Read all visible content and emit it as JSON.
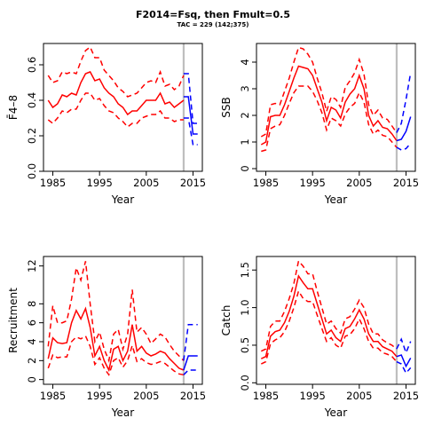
{
  "figure": {
    "title": "F2014=Fsq, then Fmult=0.5",
    "subtitle": "TAC = 229 (142;375)",
    "colors": {
      "hist": "#ff0000",
      "proj": "#0000ff",
      "vline": "#bebebe"
    },
    "vline_year": 2013
  },
  "chart_data": [
    {
      "id": "fbar",
      "type": "line",
      "ylabel": "F̄4–8",
      "xlabel": "Year",
      "xlim": [
        1983,
        2017
      ],
      "ylim": [
        0,
        0.72
      ],
      "yticks": [
        "0.0",
        "0.2",
        "0.4",
        "0.6"
      ],
      "yticks_values": [
        0,
        0.2,
        0.4,
        0.6
      ],
      "xticks": [
        "1985",
        "1995",
        "2005",
        "2015"
      ],
      "xticks_values": [
        1985,
        1995,
        2005,
        2015
      ],
      "x": [
        1984,
        1985,
        1986,
        1987,
        1988,
        1989,
        1990,
        1991,
        1992,
        1993,
        1994,
        1995,
        1996,
        1997,
        1998,
        1999,
        2000,
        2001,
        2002,
        2003,
        2004,
        2005,
        2006,
        2007,
        2008,
        2009,
        2010,
        2011,
        2012,
        2013
      ],
      "series": [
        {
          "role": "median",
          "style": "solid",
          "values": [
            0.4,
            0.36,
            0.38,
            0.43,
            0.42,
            0.44,
            0.43,
            0.5,
            0.55,
            0.56,
            0.51,
            0.52,
            0.47,
            0.44,
            0.42,
            0.38,
            0.36,
            0.32,
            0.34,
            0.34,
            0.37,
            0.4,
            0.4,
            0.4,
            0.44,
            0.38,
            0.39,
            0.36,
            0.38,
            0.4
          ]
        },
        {
          "role": "upper",
          "style": "dashed",
          "values": [
            0.54,
            0.5,
            0.51,
            0.56,
            0.55,
            0.56,
            0.55,
            0.62,
            0.68,
            0.7,
            0.64,
            0.64,
            0.57,
            0.54,
            0.51,
            0.47,
            0.45,
            0.42,
            0.43,
            0.44,
            0.47,
            0.5,
            0.51,
            0.5,
            0.56,
            0.48,
            0.49,
            0.46,
            0.48,
            0.54
          ]
        },
        {
          "role": "lower",
          "style": "dashed",
          "values": [
            0.29,
            0.27,
            0.3,
            0.34,
            0.33,
            0.35,
            0.35,
            0.4,
            0.44,
            0.44,
            0.4,
            0.41,
            0.37,
            0.34,
            0.33,
            0.3,
            0.28,
            0.25,
            0.27,
            0.27,
            0.3,
            0.31,
            0.32,
            0.32,
            0.34,
            0.3,
            0.3,
            0.28,
            0.29,
            0.29
          ]
        }
      ],
      "projection": {
        "x": [
          2013,
          2014,
          2015,
          2016
        ],
        "median": [
          0.42,
          0.42,
          0.21,
          0.21
        ],
        "upper": [
          0.55,
          0.55,
          0.27,
          0.27
        ],
        "lower": [
          0.3,
          0.3,
          0.15,
          0.15
        ]
      }
    },
    {
      "id": "ssb",
      "type": "line",
      "ylabel": "SSB",
      "xlabel": "Year",
      "xlim": [
        1983,
        2017
      ],
      "ylim": [
        -0.1,
        4.7
      ],
      "yticks": [
        "0",
        "1",
        "2",
        "3",
        "4"
      ],
      "yticks_values": [
        0,
        1,
        2,
        3,
        4
      ],
      "xticks": [
        "1985",
        "1995",
        "2005",
        "2015"
      ],
      "xticks_values": [
        1985,
        1995,
        2005,
        2015
      ],
      "x": [
        1984,
        1985,
        1986,
        1987,
        1988,
        1989,
        1990,
        1991,
        1992,
        1993,
        1994,
        1995,
        1996,
        1997,
        1998,
        1999,
        2000,
        2001,
        2002,
        2003,
        2004,
        2005,
        2006,
        2007,
        2008,
        2009,
        2010,
        2011,
        2012,
        2013
      ],
      "series": [
        {
          "role": "median",
          "style": "solid",
          "values": [
            0.9,
            1.0,
            1.95,
            2.0,
            2.0,
            2.4,
            2.9,
            3.4,
            3.85,
            3.8,
            3.75,
            3.5,
            3.0,
            2.5,
            1.8,
            2.3,
            2.2,
            1.9,
            2.5,
            2.8,
            3.0,
            3.5,
            3.0,
            2.0,
            1.6,
            1.8,
            1.55,
            1.5,
            1.3,
            1.05
          ]
        },
        {
          "role": "upper",
          "style": "dashed",
          "values": [
            1.2,
            1.3,
            2.4,
            2.45,
            2.4,
            2.9,
            3.4,
            4.0,
            4.55,
            4.5,
            4.3,
            4.0,
            3.4,
            2.85,
            2.15,
            2.7,
            2.6,
            2.3,
            3.05,
            3.3,
            3.6,
            4.1,
            3.55,
            2.4,
            2.0,
            2.2,
            1.9,
            1.85,
            1.6,
            1.35
          ]
        },
        {
          "role": "lower",
          "style": "dashed",
          "values": [
            0.65,
            0.7,
            1.5,
            1.6,
            1.65,
            2.0,
            2.45,
            2.85,
            3.1,
            3.1,
            3.1,
            2.9,
            2.55,
            2.1,
            1.45,
            1.9,
            1.8,
            1.6,
            2.05,
            2.3,
            2.45,
            2.85,
            2.5,
            1.65,
            1.3,
            1.45,
            1.25,
            1.2,
            1.0,
            0.8
          ]
        }
      ],
      "projection": {
        "x": [
          2013,
          2014,
          2015,
          2016
        ],
        "median": [
          1.05,
          1.1,
          1.4,
          1.95
        ],
        "upper": [
          1.35,
          1.7,
          2.6,
          3.6
        ],
        "lower": [
          0.8,
          0.7,
          0.75,
          0.95
        ]
      }
    },
    {
      "id": "recruitment",
      "type": "line",
      "ylabel": "Recruitment",
      "xlabel": "Year",
      "xlim": [
        1983,
        2017
      ],
      "ylim": [
        -0.5,
        13
      ],
      "yticks": [
        "0",
        "2",
        "4",
        "6",
        "8",
        "12"
      ],
      "yticks_values": [
        0,
        2,
        4,
        6,
        8,
        12
      ],
      "xticks": [
        "1985",
        "1995",
        "2005",
        "2015"
      ],
      "xticks_values": [
        1985,
        1995,
        2005,
        2015
      ],
      "x": [
        1984,
        1985,
        1986,
        1987,
        1988,
        1989,
        1990,
        1991,
        1992,
        1993,
        1994,
        1995,
        1996,
        1997,
        1998,
        1999,
        2000,
        2001,
        2002,
        2003,
        2004,
        2005,
        2006,
        2007,
        2008,
        2009,
        2010,
        2011,
        2012,
        2013
      ],
      "series": [
        {
          "role": "median",
          "style": "solid",
          "values": [
            2.2,
            4.4,
            3.9,
            3.8,
            3.9,
            6.0,
            7.3,
            6.4,
            7.5,
            5.5,
            2.5,
            3.5,
            2.0,
            1.0,
            3.2,
            3.5,
            2.0,
            3.0,
            5.8,
            3.0,
            3.5,
            2.8,
            2.5,
            2.7,
            3.0,
            2.8,
            2.2,
            1.7,
            1.2,
            1.0
          ]
        },
        {
          "role": "upper",
          "style": "dashed",
          "values": [
            3.5,
            7.8,
            6.0,
            6.0,
            6.2,
            8.5,
            11.8,
            10.5,
            12.5,
            8.0,
            4.0,
            5.0,
            3.2,
            2.0,
            4.8,
            5.3,
            3.2,
            4.8,
            9.5,
            5.0,
            5.5,
            4.8,
            3.8,
            4.3,
            4.8,
            4.5,
            3.7,
            3.0,
            2.5,
            2.0
          ]
        },
        {
          "role": "lower",
          "style": "dashed",
          "values": [
            1.2,
            2.6,
            2.3,
            2.4,
            2.4,
            4.0,
            4.5,
            4.3,
            4.6,
            3.5,
            1.6,
            2.3,
            1.2,
            0.5,
            2.0,
            2.3,
            1.3,
            2.0,
            3.6,
            1.9,
            2.2,
            1.8,
            1.6,
            1.7,
            1.9,
            1.7,
            1.3,
            0.9,
            0.6,
            0.5
          ]
        }
      ],
      "projection": {
        "x": [
          2013,
          2014,
          2015,
          2016
        ],
        "median": [
          1.0,
          2.5,
          2.5,
          2.5
        ],
        "upper": [
          2.0,
          5.8,
          5.8,
          5.8
        ],
        "lower": [
          0.5,
          1.0,
          1.0,
          1.0
        ]
      }
    },
    {
      "id": "catch",
      "type": "line",
      "ylabel": "Catch",
      "xlabel": "Year",
      "xlim": [
        1983,
        2017
      ],
      "ylim": [
        -0.02,
        1.68
      ],
      "yticks": [
        "0.0",
        "0.5",
        "1.0",
        "1.5"
      ],
      "yticks_values": [
        0,
        0.5,
        1.0,
        1.5
      ],
      "xticks": [
        "1985",
        "1995",
        "2005",
        "2015"
      ],
      "xticks_values": [
        1985,
        1995,
        2005,
        2015
      ],
      "x": [
        1984,
        1985,
        1986,
        1987,
        1988,
        1989,
        1990,
        1991,
        1992,
        1993,
        1994,
        1995,
        1996,
        1997,
        1998,
        1999,
        2000,
        2001,
        2002,
        2003,
        2004,
        2005,
        2006,
        2007,
        2008,
        2009,
        2010,
        2011,
        2012,
        2013
      ],
      "series": [
        {
          "role": "median",
          "style": "solid",
          "values": [
            0.32,
            0.35,
            0.62,
            0.68,
            0.7,
            0.8,
            0.95,
            1.15,
            1.42,
            1.33,
            1.25,
            1.25,
            1.05,
            0.85,
            0.65,
            0.7,
            0.6,
            0.55,
            0.72,
            0.75,
            0.85,
            0.97,
            0.85,
            0.65,
            0.55,
            0.55,
            0.48,
            0.45,
            0.42,
            0.35
          ]
        },
        {
          "role": "upper",
          "style": "dashed",
          "values": [
            0.42,
            0.45,
            0.75,
            0.82,
            0.82,
            0.95,
            1.12,
            1.32,
            1.62,
            1.55,
            1.45,
            1.45,
            1.22,
            1.0,
            0.78,
            0.82,
            0.72,
            0.66,
            0.85,
            0.88,
            0.98,
            1.1,
            1.0,
            0.78,
            0.65,
            0.65,
            0.57,
            0.53,
            0.5,
            0.45
          ]
        },
        {
          "role": "lower",
          "style": "dashed",
          "values": [
            0.25,
            0.28,
            0.52,
            0.57,
            0.6,
            0.68,
            0.82,
            1.0,
            1.22,
            1.12,
            1.08,
            1.08,
            0.9,
            0.72,
            0.55,
            0.6,
            0.5,
            0.46,
            0.62,
            0.64,
            0.72,
            0.85,
            0.72,
            0.55,
            0.46,
            0.46,
            0.4,
            0.38,
            0.35,
            0.28
          ]
        }
      ],
      "projection": {
        "x": [
          2013,
          2014,
          2015,
          2016
        ],
        "median": [
          0.35,
          0.37,
          0.22,
          0.33
        ],
        "upper": [
          0.45,
          0.58,
          0.4,
          0.55
        ],
        "lower": [
          0.28,
          0.25,
          0.13,
          0.2
        ]
      }
    }
  ]
}
